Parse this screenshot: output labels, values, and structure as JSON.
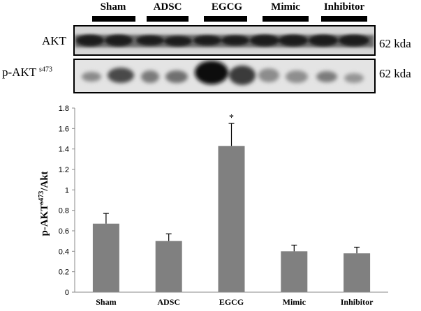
{
  "blot": {
    "groups": [
      "Sham",
      "ADSC",
      "EGCG",
      "Mimic",
      "Inhibitor"
    ],
    "rows": [
      {
        "label": "AKT",
        "superscript": "",
        "size": "62 kda"
      },
      {
        "label": "p-AKT",
        "superscript": "s473",
        "size": "62 kda"
      }
    ]
  },
  "chart_data": {
    "type": "bar",
    "categories": [
      "Sham",
      "ADSC",
      "EGCG",
      "Mimic",
      "Inhibitor"
    ],
    "values": [
      0.67,
      0.5,
      1.43,
      0.4,
      0.38
    ],
    "errors": [
      0.1,
      0.07,
      0.22,
      0.06,
      0.06
    ],
    "annotations": [
      "",
      "",
      "*",
      "",
      ""
    ],
    "ylabel": "p-AKT",
    "ylabel_superscript": "s473",
    "ylabel_suffix": "/Akt",
    "ylim": [
      0,
      1.8
    ],
    "yticks": [
      0,
      0.2,
      0.4,
      0.6,
      0.8,
      1,
      1.2,
      1.4,
      1.6,
      1.8
    ],
    "bar_color": "#808080"
  }
}
